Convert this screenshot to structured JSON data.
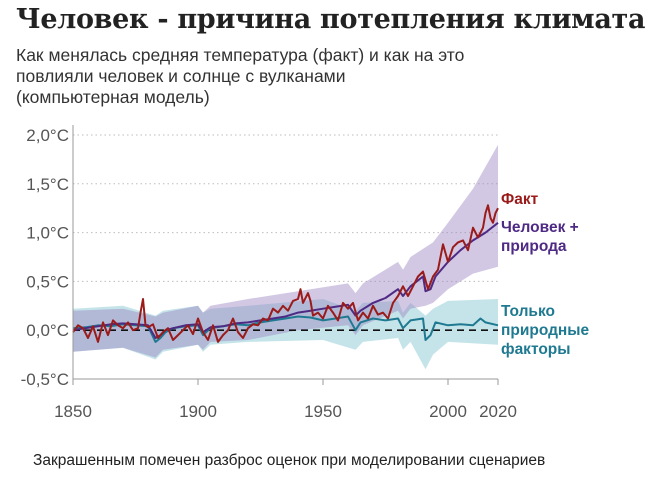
{
  "header": {
    "title": "Человек - причина потепления климата",
    "subtitle_lines": [
      "Как менялась средняя температура (факт) и как на это",
      "повлияли человек и солнце с вулканами",
      "(компьютерная модель)"
    ]
  },
  "footnote": "Закрашенным помечен разброс оценок при моделировании сценариев",
  "chart_data": {
    "type": "line",
    "title": "Человек - причина потепления климата",
    "xlabel": "",
    "ylabel": "",
    "xlim": [
      1850,
      2020
    ],
    "ylim": [
      -0.5,
      2.0
    ],
    "x_ticks": [
      {
        "value": 1850,
        "label": "1850"
      },
      {
        "value": 1900,
        "label": "1900"
      },
      {
        "value": 1950,
        "label": "1950"
      },
      {
        "value": 2000,
        "label": "2000"
      },
      {
        "value": 2020,
        "label": "2020"
      }
    ],
    "y_ticks": [
      {
        "value": 2.0,
        "label": "2,0°C"
      },
      {
        "value": 1.5,
        "label": "1,5°C"
      },
      {
        "value": 1.0,
        "label": "1,0°C"
      },
      {
        "value": 0.5,
        "label": "0,5°C"
      },
      {
        "value": 0.0,
        "label": "0,0°C"
      },
      {
        "value": -0.5,
        "label": "-0,5°C"
      }
    ],
    "grid": "horizontal-dotted",
    "reference_line": {
      "value": 0.0,
      "style": "dashed"
    },
    "legend": "direct-labels-right",
    "series": [
      {
        "name": "Факт",
        "label_lines": [
          "Факт"
        ],
        "color": "#9b1b1b",
        "x": [
          1850,
          1852,
          1854,
          1856,
          1858,
          1860,
          1862,
          1864,
          1866,
          1868,
          1870,
          1872,
          1874,
          1876,
          1877,
          1878,
          1879,
          1880,
          1882,
          1884,
          1886,
          1888,
          1890,
          1892,
          1894,
          1896,
          1898,
          1900,
          1902,
          1904,
          1906,
          1908,
          1910,
          1912,
          1914,
          1916,
          1918,
          1920,
          1922,
          1924,
          1926,
          1928,
          1930,
          1932,
          1934,
          1936,
          1938,
          1940,
          1941,
          1942,
          1944,
          1945,
          1946,
          1948,
          1950,
          1952,
          1954,
          1956,
          1958,
          1960,
          1962,
          1964,
          1966,
          1968,
          1970,
          1972,
          1974,
          1976,
          1978,
          1980,
          1982,
          1984,
          1986,
          1988,
          1990,
          1992,
          1994,
          1996,
          1998,
          2000,
          2002,
          2004,
          2006,
          2008,
          2010,
          2012,
          2014,
          2015,
          2016,
          2017,
          2018,
          2019,
          2020
        ],
        "values": [
          -0.02,
          0.05,
          0.02,
          -0.08,
          0.04,
          -0.12,
          0.08,
          -0.05,
          0.1,
          0.05,
          0.02,
          0.08,
          0.0,
          0.02,
          0.18,
          0.32,
          0.05,
          0.03,
          0.06,
          -0.08,
          -0.02,
          0.02,
          -0.1,
          -0.05,
          0.0,
          0.05,
          -0.04,
          0.12,
          -0.02,
          -0.1,
          0.05,
          -0.12,
          -0.05,
          0.0,
          0.12,
          -0.02,
          -0.08,
          0.02,
          0.06,
          0.05,
          0.12,
          0.1,
          0.22,
          0.18,
          0.25,
          0.2,
          0.3,
          0.32,
          0.42,
          0.28,
          0.38,
          0.3,
          0.15,
          0.18,
          0.12,
          0.25,
          0.18,
          0.1,
          0.28,
          0.22,
          0.28,
          0.1,
          0.18,
          0.12,
          0.25,
          0.16,
          0.18,
          0.12,
          0.28,
          0.35,
          0.45,
          0.35,
          0.45,
          0.55,
          0.6,
          0.42,
          0.55,
          0.62,
          0.88,
          0.7,
          0.85,
          0.9,
          0.92,
          0.82,
          1.05,
          0.95,
          1.05,
          1.2,
          1.28,
          1.15,
          1.1,
          1.2,
          1.25
        ]
      },
      {
        "name": "Человек + природа",
        "label_lines": [
          "Человек +",
          "природа"
        ],
        "color": "#4e2a84",
        "x": [
          1850,
          1855,
          1860,
          1865,
          1870,
          1875,
          1880,
          1883,
          1885,
          1887,
          1890,
          1895,
          1900,
          1902,
          1905,
          1910,
          1915,
          1920,
          1925,
          1930,
          1935,
          1940,
          1945,
          1950,
          1955,
          1960,
          1963,
          1965,
          1970,
          1975,
          1980,
          1982,
          1985,
          1990,
          1991,
          1993,
          1995,
          2000,
          2005,
          2010,
          2015,
          2020
        ],
        "values": [
          0.0,
          0.02,
          0.04,
          0.06,
          0.07,
          0.06,
          0.05,
          -0.08,
          -0.05,
          0.0,
          0.02,
          0.05,
          0.06,
          -0.02,
          0.03,
          0.04,
          0.07,
          0.08,
          0.1,
          0.12,
          0.14,
          0.18,
          0.2,
          0.22,
          0.24,
          0.26,
          0.15,
          0.2,
          0.28,
          0.33,
          0.42,
          0.35,
          0.45,
          0.55,
          0.4,
          0.42,
          0.55,
          0.7,
          0.82,
          0.92,
          1.0,
          1.1
        ]
      },
      {
        "name": "Только природные факторы",
        "label_lines": [
          "Только",
          "природные",
          "факторы"
        ],
        "color": "#1f7a91",
        "x": [
          1850,
          1855,
          1860,
          1865,
          1870,
          1875,
          1880,
          1883,
          1885,
          1887,
          1890,
          1895,
          1900,
          1902,
          1905,
          1910,
          1915,
          1920,
          1925,
          1930,
          1935,
          1940,
          1945,
          1950,
          1955,
          1960,
          1963,
          1965,
          1970,
          1975,
          1980,
          1982,
          1985,
          1990,
          1991,
          1993,
          1995,
          2000,
          2005,
          2010,
          2013,
          2015,
          2020
        ],
        "values": [
          0.02,
          0.03,
          0.05,
          0.04,
          0.06,
          0.05,
          0.04,
          -0.12,
          -0.08,
          -0.02,
          0.02,
          0.04,
          0.05,
          -0.05,
          0.02,
          0.04,
          0.06,
          0.05,
          0.08,
          0.1,
          0.12,
          0.14,
          0.13,
          0.1,
          0.12,
          0.14,
          0.0,
          0.08,
          0.12,
          0.1,
          0.12,
          0.02,
          0.1,
          0.12,
          -0.1,
          -0.05,
          0.08,
          0.05,
          0.06,
          0.05,
          0.12,
          0.08,
          0.05
        ]
      }
    ],
    "ranges": [
      {
        "name": "Только природные факторы",
        "color": "#7ec3d1",
        "x": [
          1850,
          1870,
          1883,
          1886,
          1900,
          1902,
          1905,
          1920,
          1950,
          1963,
          1966,
          1980,
          1982,
          1985,
          1991,
          1994,
          2000,
          2020
        ],
        "lower": [
          -0.22,
          -0.18,
          -0.3,
          -0.22,
          -0.15,
          -0.22,
          -0.15,
          -0.12,
          -0.1,
          -0.2,
          -0.12,
          -0.08,
          -0.2,
          -0.12,
          -0.4,
          -0.25,
          -0.12,
          -0.15
        ],
        "upper": [
          0.22,
          0.25,
          0.15,
          0.2,
          0.25,
          0.18,
          0.22,
          0.25,
          0.32,
          0.2,
          0.28,
          0.3,
          0.18,
          0.28,
          0.15,
          0.22,
          0.3,
          0.32
        ]
      },
      {
        "name": "Человек + природа",
        "color": "#9b86c2",
        "x": [
          1850,
          1870,
          1883,
          1886,
          1900,
          1902,
          1905,
          1920,
          1940,
          1960,
          1963,
          1966,
          1980,
          1982,
          1985,
          1991,
          1994,
          2000,
          2010,
          2020
        ],
        "lower": [
          -0.22,
          -0.18,
          -0.28,
          -0.2,
          -0.15,
          -0.2,
          -0.12,
          -0.1,
          0.0,
          0.05,
          -0.05,
          0.05,
          0.2,
          0.12,
          0.22,
          0.25,
          0.28,
          0.42,
          0.58,
          0.65
        ],
        "upper": [
          0.2,
          0.22,
          0.14,
          0.18,
          0.25,
          0.18,
          0.25,
          0.32,
          0.4,
          0.48,
          0.38,
          0.48,
          0.7,
          0.62,
          0.75,
          0.85,
          0.9,
          1.1,
          1.45,
          1.9
        ]
      }
    ]
  }
}
